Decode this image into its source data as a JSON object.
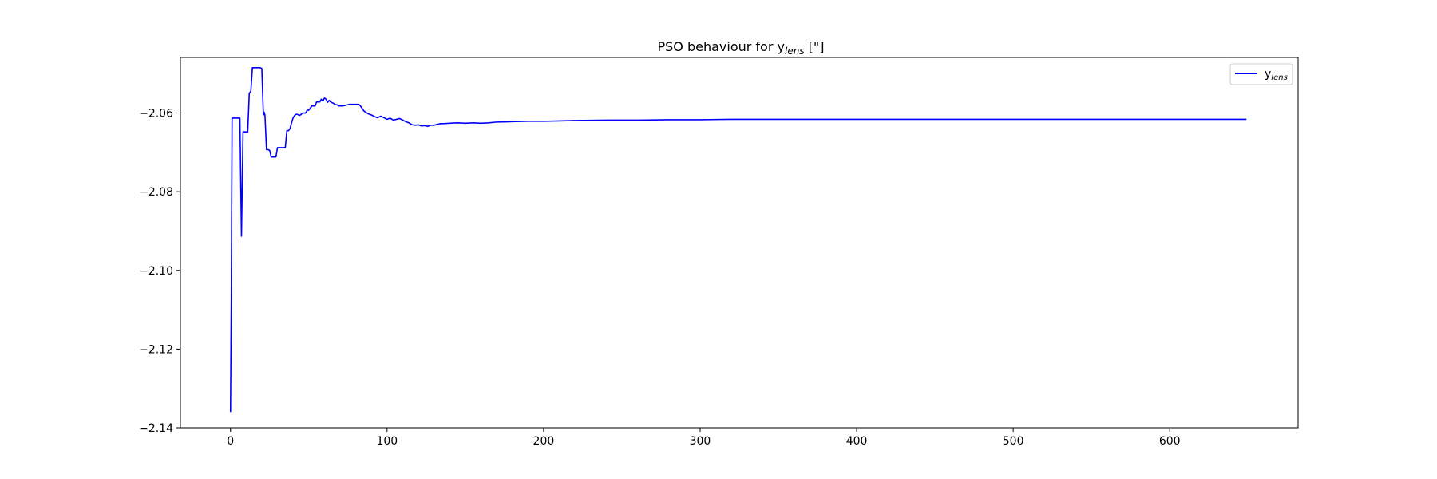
{
  "chart_data": {
    "type": "line",
    "title": {
      "main": "PSO behaviour for y",
      "subscript": "lens",
      "suffix": " [\"]"
    },
    "xlabel": "",
    "ylabel": "",
    "xlim": [
      -32,
      682
    ],
    "ylim": [
      -2.14,
      -2.0459
    ],
    "x_ticks": [
      0,
      100,
      200,
      300,
      400,
      500,
      600
    ],
    "y_ticks": [
      -2.14,
      -2.12,
      -2.1,
      -2.08,
      -2.06
    ],
    "y_tick_labels": [
      "−2.14",
      "−2.12",
      "−2.10",
      "−2.08",
      "−2.06"
    ],
    "grid": false,
    "legend_position": "top-right",
    "series": [
      {
        "name": {
          "main": "y",
          "subscript": "lens"
        },
        "color": "#0000ff",
        "points": [
          [
            0,
            -2.136
          ],
          [
            0.5,
            -2.107
          ],
          [
            1,
            -2.0613
          ],
          [
            2,
            -2.0613
          ],
          [
            3,
            -2.0613
          ],
          [
            4,
            -2.0613
          ],
          [
            5,
            -2.0613
          ],
          [
            6,
            -2.0613
          ],
          [
            7,
            -2.0913
          ],
          [
            8,
            -2.0648
          ],
          [
            9,
            -2.0648
          ],
          [
            10,
            -2.0648
          ],
          [
            11,
            -2.0648
          ],
          [
            12,
            -2.055
          ],
          [
            13,
            -2.0545
          ],
          [
            14,
            -2.0485
          ],
          [
            15,
            -2.0485
          ],
          [
            16,
            -2.0485
          ],
          [
            17,
            -2.0485
          ],
          [
            18,
            -2.0485
          ],
          [
            19,
            -2.0485
          ],
          [
            20,
            -2.0487
          ],
          [
            21,
            -2.0605
          ],
          [
            21.5,
            -2.0598
          ],
          [
            22,
            -2.0605
          ],
          [
            23,
            -2.0693
          ],
          [
            24,
            -2.0693
          ],
          [
            25,
            -2.0695
          ],
          [
            26,
            -2.0712
          ],
          [
            27,
            -2.0712
          ],
          [
            28,
            -2.0712
          ],
          [
            29,
            -2.0712
          ],
          [
            30,
            -2.0688
          ],
          [
            31,
            -2.0688
          ],
          [
            32,
            -2.0688
          ],
          [
            33,
            -2.0688
          ],
          [
            34,
            -2.0688
          ],
          [
            35,
            -2.0688
          ],
          [
            36,
            -2.0645
          ],
          [
            37,
            -2.0645
          ],
          [
            38,
            -2.064
          ],
          [
            39,
            -2.0625
          ],
          [
            40,
            -2.0612
          ],
          [
            41,
            -2.0606
          ],
          [
            42,
            -2.0603
          ],
          [
            43,
            -2.0604
          ],
          [
            44,
            -2.0606
          ],
          [
            45,
            -2.0604
          ],
          [
            46,
            -2.06
          ],
          [
            47,
            -2.06
          ],
          [
            48,
            -2.06
          ],
          [
            49,
            -2.0593
          ],
          [
            50,
            -2.0593
          ],
          [
            52,
            -2.0582
          ],
          [
            54,
            -2.0582
          ],
          [
            55,
            -2.0572
          ],
          [
            57,
            -2.0572
          ],
          [
            58,
            -2.0565
          ],
          [
            59,
            -2.057
          ],
          [
            60,
            -2.0562
          ],
          [
            61,
            -2.0565
          ],
          [
            62,
            -2.0573
          ],
          [
            63,
            -2.0568
          ],
          [
            64,
            -2.0572
          ],
          [
            65,
            -2.0574
          ],
          [
            66,
            -2.0576
          ],
          [
            67,
            -2.0579
          ],
          [
            68,
            -2.0579
          ],
          [
            69,
            -2.0582
          ],
          [
            70,
            -2.0582
          ],
          [
            72,
            -2.0582
          ],
          [
            74,
            -2.058
          ],
          [
            76,
            -2.0578
          ],
          [
            78,
            -2.0578
          ],
          [
            80,
            -2.0578
          ],
          [
            82,
            -2.0578
          ],
          [
            83,
            -2.0582
          ],
          [
            84,
            -2.0588
          ],
          [
            85,
            -2.0594
          ],
          [
            86,
            -2.0597
          ],
          [
            88,
            -2.0602
          ],
          [
            90,
            -2.0605
          ],
          [
            92,
            -2.0609
          ],
          [
            94,
            -2.0612
          ],
          [
            96,
            -2.0608
          ],
          [
            98,
            -2.0612
          ],
          [
            100,
            -2.0616
          ],
          [
            102,
            -2.0613
          ],
          [
            104,
            -2.0618
          ],
          [
            106,
            -2.0616
          ],
          [
            108,
            -2.0614
          ],
          [
            110,
            -2.0618
          ],
          [
            112,
            -2.0622
          ],
          [
            114,
            -2.0625
          ],
          [
            116,
            -2.063
          ],
          [
            118,
            -2.0631
          ],
          [
            120,
            -2.063
          ],
          [
            122,
            -2.0633
          ],
          [
            124,
            -2.0632
          ],
          [
            126,
            -2.0634
          ],
          [
            128,
            -2.0631
          ],
          [
            130,
            -2.0631
          ],
          [
            132,
            -2.0629
          ],
          [
            134,
            -2.0627
          ],
          [
            136,
            -2.0627
          ],
          [
            140,
            -2.0626
          ],
          [
            145,
            -2.0625
          ],
          [
            150,
            -2.0626
          ],
          [
            155,
            -2.0625
          ],
          [
            160,
            -2.0626
          ],
          [
            165,
            -2.0625
          ],
          [
            170,
            -2.0623
          ],
          [
            180,
            -2.0622
          ],
          [
            190,
            -2.0621
          ],
          [
            200,
            -2.0621
          ],
          [
            210,
            -2.062
          ],
          [
            220,
            -2.0619
          ],
          [
            240,
            -2.0618
          ],
          [
            260,
            -2.0618
          ],
          [
            280,
            -2.0617
          ],
          [
            300,
            -2.0617
          ],
          [
            320,
            -2.0616
          ],
          [
            340,
            -2.0616
          ],
          [
            360,
            -2.0616
          ],
          [
            380,
            -2.0616
          ],
          [
            400,
            -2.0616
          ],
          [
            430,
            -2.0616
          ],
          [
            460,
            -2.0616
          ],
          [
            500,
            -2.0616
          ],
          [
            550,
            -2.0616
          ],
          [
            600,
            -2.0616
          ],
          [
            649,
            -2.0616
          ]
        ]
      }
    ]
  }
}
